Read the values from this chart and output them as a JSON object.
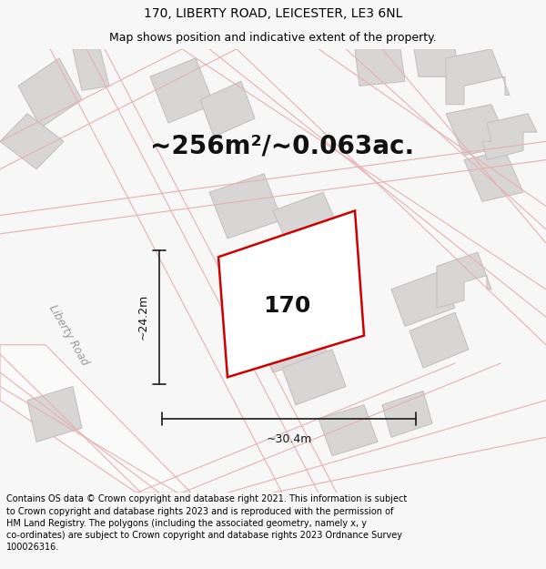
{
  "title_line1": "170, LIBERTY ROAD, LEICESTER, LE3 6NL",
  "title_line2": "Map shows position and indicative extent of the property.",
  "area_text": "~256m²/~0.063ac.",
  "property_number": "170",
  "dim_width": "~30.4m",
  "dim_height": "~24.2m",
  "road_label": "Liberty Road",
  "footer_text": "Contains OS data © Crown copyright and database right 2021. This information is subject\nto Crown copyright and database rights 2023 and is reproduced with the permission of\nHM Land Registry. The polygons (including the associated geometry, namely x, y\nco-ordinates) are subject to Crown copyright and database rights 2023 Ordnance Survey\n100026316.",
  "bg_color": "#f7f7f7",
  "map_bg": "#f2efef",
  "building_fill": "#d8d5d5",
  "building_edge": "#c8c0c0",
  "road_pink": "#e8b0b0",
  "property_outline": "#cc0000",
  "property_fill": "#ffffff",
  "dim_line_color": "#1a1a1a",
  "title_fontsize": 10,
  "subtitle_fontsize": 9,
  "area_fontsize": 20,
  "number_fontsize": 18,
  "road_label_fontsize": 8.5,
  "dim_fontsize": 9,
  "footer_fontsize": 7
}
